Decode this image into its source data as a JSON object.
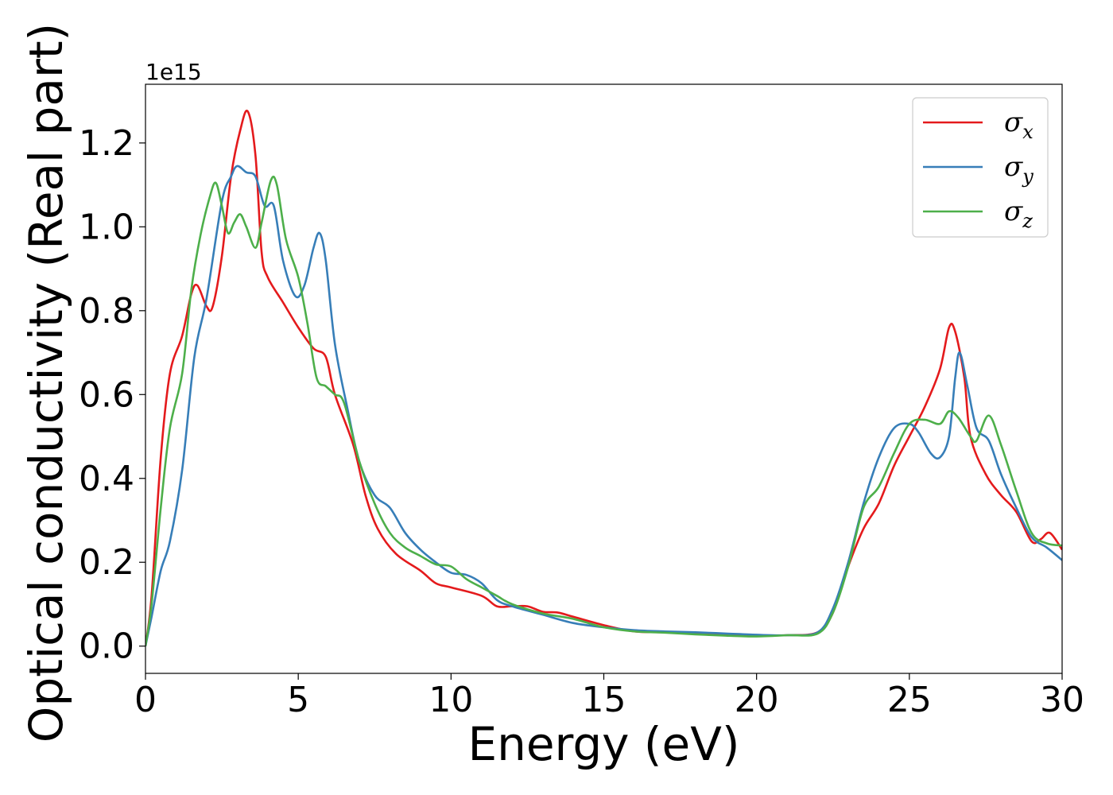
{
  "chart_data": {
    "type": "line",
    "xlabel": "Energy (eV)",
    "ylabel": "Optical conductivity (Real part)",
    "y_offset_label": "1e15",
    "xlim": [
      0,
      30
    ],
    "ylim": [
      -0.065,
      1.34
    ],
    "x_ticks": [
      0,
      5,
      10,
      15,
      20,
      25,
      30
    ],
    "x_tick_labels": [
      "0",
      "5",
      "10",
      "15",
      "20",
      "25",
      "30"
    ],
    "y_ticks": [
      0.0,
      0.2,
      0.4,
      0.6,
      0.8,
      1.0,
      1.2
    ],
    "y_tick_labels": [
      "0.0",
      "0.2",
      "0.4",
      "0.6",
      "0.8",
      "1.0",
      "1.2"
    ],
    "grid": false,
    "legend_position": "top-right",
    "series": [
      {
        "name": "σx",
        "legend_main": "σ",
        "legend_sub": "x",
        "color": "#e41a1c",
        "points": [
          [
            0,
            0
          ],
          [
            0.2,
            0.12
          ],
          [
            0.5,
            0.45
          ],
          [
            0.8,
            0.65
          ],
          [
            1.2,
            0.74
          ],
          [
            1.5,
            0.84
          ],
          [
            1.7,
            0.86
          ],
          [
            2.0,
            0.81
          ],
          [
            2.2,
            0.81
          ],
          [
            2.5,
            0.93
          ],
          [
            2.8,
            1.12
          ],
          [
            3.1,
            1.23
          ],
          [
            3.35,
            1.275
          ],
          [
            3.6,
            1.17
          ],
          [
            3.8,
            0.94
          ],
          [
            4.0,
            0.88
          ],
          [
            4.5,
            0.82
          ],
          [
            5.0,
            0.76
          ],
          [
            5.5,
            0.71
          ],
          [
            5.9,
            0.69
          ],
          [
            6.2,
            0.6
          ],
          [
            6.8,
            0.48
          ],
          [
            7.2,
            0.36
          ],
          [
            7.6,
            0.28
          ],
          [
            8.2,
            0.22
          ],
          [
            9.0,
            0.18
          ],
          [
            9.5,
            0.15
          ],
          [
            10.0,
            0.14
          ],
          [
            11.0,
            0.12
          ],
          [
            11.5,
            0.095
          ],
          [
            12.0,
            0.095
          ],
          [
            12.5,
            0.095
          ],
          [
            13.0,
            0.082
          ],
          [
            13.5,
            0.08
          ],
          [
            14.0,
            0.07
          ],
          [
            15.0,
            0.05
          ],
          [
            16.0,
            0.035
          ],
          [
            17.0,
            0.033
          ],
          [
            18.0,
            0.03
          ],
          [
            19.0,
            0.028
          ],
          [
            20.0,
            0.026
          ],
          [
            21.0,
            0.026
          ],
          [
            22.0,
            0.033
          ],
          [
            22.5,
            0.08
          ],
          [
            23.0,
            0.19
          ],
          [
            23.5,
            0.28
          ],
          [
            24.0,
            0.34
          ],
          [
            24.5,
            0.43
          ],
          [
            25.0,
            0.5
          ],
          [
            25.5,
            0.57
          ],
          [
            26.0,
            0.66
          ],
          [
            26.3,
            0.76
          ],
          [
            26.5,
            0.75
          ],
          [
            26.8,
            0.64
          ],
          [
            27.0,
            0.5
          ],
          [
            27.5,
            0.41
          ],
          [
            28.0,
            0.36
          ],
          [
            28.5,
            0.32
          ],
          [
            29.0,
            0.25
          ],
          [
            29.3,
            0.255
          ],
          [
            29.6,
            0.27
          ],
          [
            30.0,
            0.23
          ]
        ]
      },
      {
        "name": "σy",
        "legend_main": "σ",
        "legend_sub": "y",
        "color": "#377eb8",
        "points": [
          [
            0,
            0
          ],
          [
            0.2,
            0.07
          ],
          [
            0.5,
            0.18
          ],
          [
            0.8,
            0.25
          ],
          [
            1.2,
            0.42
          ],
          [
            1.6,
            0.69
          ],
          [
            2.0,
            0.83
          ],
          [
            2.5,
            1.06
          ],
          [
            2.8,
            1.12
          ],
          [
            3.0,
            1.145
          ],
          [
            3.3,
            1.13
          ],
          [
            3.6,
            1.12
          ],
          [
            3.9,
            1.05
          ],
          [
            4.2,
            1.05
          ],
          [
            4.5,
            0.92
          ],
          [
            4.9,
            0.835
          ],
          [
            5.2,
            0.86
          ],
          [
            5.5,
            0.95
          ],
          [
            5.7,
            0.985
          ],
          [
            5.9,
            0.92
          ],
          [
            6.2,
            0.72
          ],
          [
            6.6,
            0.57
          ],
          [
            7.0,
            0.44
          ],
          [
            7.5,
            0.36
          ],
          [
            8.0,
            0.33
          ],
          [
            8.5,
            0.27
          ],
          [
            9.0,
            0.23
          ],
          [
            9.5,
            0.2
          ],
          [
            10.0,
            0.175
          ],
          [
            10.5,
            0.17
          ],
          [
            11.0,
            0.15
          ],
          [
            11.5,
            0.11
          ],
          [
            12.0,
            0.095
          ],
          [
            13.0,
            0.075
          ],
          [
            14.0,
            0.055
          ],
          [
            15.0,
            0.045
          ],
          [
            16.0,
            0.038
          ],
          [
            17.0,
            0.035
          ],
          [
            18.0,
            0.033
          ],
          [
            19.0,
            0.03
          ],
          [
            20.0,
            0.027
          ],
          [
            21.0,
            0.026
          ],
          [
            22.0,
            0.033
          ],
          [
            22.5,
            0.09
          ],
          [
            23.0,
            0.2
          ],
          [
            23.5,
            0.34
          ],
          [
            24.0,
            0.45
          ],
          [
            24.5,
            0.52
          ],
          [
            25.0,
            0.53
          ],
          [
            25.3,
            0.51
          ],
          [
            25.7,
            0.46
          ],
          [
            26.0,
            0.45
          ],
          [
            26.3,
            0.5
          ],
          [
            26.5,
            0.64
          ],
          [
            26.65,
            0.7
          ],
          [
            26.9,
            0.62
          ],
          [
            27.2,
            0.52
          ],
          [
            27.6,
            0.49
          ],
          [
            28.0,
            0.41
          ],
          [
            28.5,
            0.33
          ],
          [
            29.0,
            0.26
          ],
          [
            29.5,
            0.235
          ],
          [
            30.0,
            0.205
          ]
        ]
      },
      {
        "name": "σz",
        "legend_main": "σ",
        "legend_sub": "z",
        "color": "#4daf4a",
        "points": [
          [
            0,
            0
          ],
          [
            0.2,
            0.1
          ],
          [
            0.5,
            0.33
          ],
          [
            0.8,
            0.52
          ],
          [
            1.2,
            0.65
          ],
          [
            1.5,
            0.85
          ],
          [
            1.8,
            0.98
          ],
          [
            2.1,
            1.07
          ],
          [
            2.3,
            1.105
          ],
          [
            2.5,
            1.05
          ],
          [
            2.7,
            0.985
          ],
          [
            2.9,
            1.01
          ],
          [
            3.1,
            1.03
          ],
          [
            3.3,
            1.0
          ],
          [
            3.6,
            0.95
          ],
          [
            3.8,
            1.01
          ],
          [
            4.1,
            1.11
          ],
          [
            4.3,
            1.1
          ],
          [
            4.6,
            0.97
          ],
          [
            5.0,
            0.88
          ],
          [
            5.3,
            0.77
          ],
          [
            5.6,
            0.64
          ],
          [
            5.9,
            0.62
          ],
          [
            6.2,
            0.6
          ],
          [
            6.5,
            0.58
          ],
          [
            7.0,
            0.44
          ],
          [
            7.5,
            0.34
          ],
          [
            8.0,
            0.27
          ],
          [
            8.5,
            0.235
          ],
          [
            9.0,
            0.215
          ],
          [
            9.5,
            0.195
          ],
          [
            10.0,
            0.19
          ],
          [
            10.5,
            0.16
          ],
          [
            11.0,
            0.14
          ],
          [
            11.5,
            0.12
          ],
          [
            12.0,
            0.1
          ],
          [
            13.0,
            0.078
          ],
          [
            14.0,
            0.065
          ],
          [
            15.0,
            0.045
          ],
          [
            16.0,
            0.035
          ],
          [
            17.0,
            0.032
          ],
          [
            18.0,
            0.028
          ],
          [
            19.0,
            0.025
          ],
          [
            20.0,
            0.023
          ],
          [
            21.0,
            0.026
          ],
          [
            22.0,
            0.03
          ],
          [
            22.5,
            0.08
          ],
          [
            23.0,
            0.19
          ],
          [
            23.5,
            0.33
          ],
          [
            24.0,
            0.38
          ],
          [
            24.5,
            0.46
          ],
          [
            25.0,
            0.53
          ],
          [
            25.5,
            0.54
          ],
          [
            26.0,
            0.53
          ],
          [
            26.3,
            0.56
          ],
          [
            26.6,
            0.545
          ],
          [
            27.0,
            0.5
          ],
          [
            27.2,
            0.49
          ],
          [
            27.6,
            0.55
          ],
          [
            28.0,
            0.48
          ],
          [
            28.5,
            0.37
          ],
          [
            29.0,
            0.27
          ],
          [
            29.5,
            0.245
          ],
          [
            30.0,
            0.24
          ]
        ]
      }
    ]
  }
}
